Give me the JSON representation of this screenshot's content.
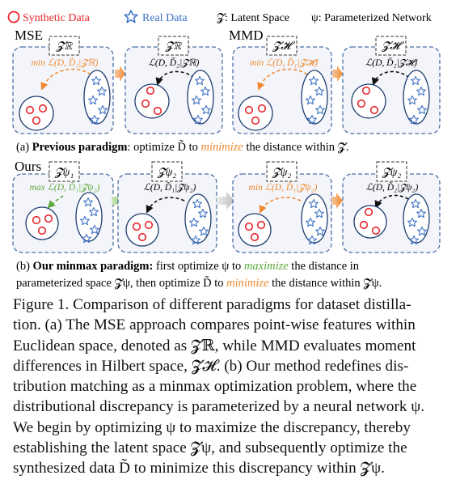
{
  "legend": {
    "synthetic_label": "Synthetic Data",
    "real_label": "Real Data",
    "latent_label": "𝓩: Latent Space",
    "param_label": "ψ: Parameterized Network"
  },
  "row1": {
    "label_mse": "MSE",
    "label_mmd": "MMD",
    "boxes": [
      "𝓩ℝ",
      "𝓩ℝ",
      "𝓩𝓗",
      "𝓩𝓗"
    ],
    "formulas": [
      "min ℒ(D, D̃₁|𝓩ℝ)",
      "ℒ(D, D̃₂|𝓩ℝ)",
      "min ℒ(D, D̃₁|𝓩𝓗)",
      "ℒ(D, D̃₂|𝓩𝓗)"
    ],
    "caption_prefix": "(a) ",
    "caption_bold": "Previous paradigm",
    "caption_mid": ": optimize D̃ to ",
    "caption_em": "minimize",
    "caption_end": " the distance within 𝓩."
  },
  "row2": {
    "label_ours": "Ours",
    "boxes": [
      "𝓩ψ₁",
      "𝓩ψ₂",
      "𝓩ψ₂",
      "𝓩ψ₂"
    ],
    "formulas": [
      "max ℒ(D, D̃₁|𝓩ψ₂)",
      "ℒ(D, D̃₁|𝓩ψ₂)",
      "min ℒ(D, D̃₁|𝓩ψ₂)",
      "ℒ(D, D̃₂|𝓩ψ₂)"
    ],
    "caption_l1_prefix": "(b) ",
    "caption_l1_bold": "Our minmax paradigm:",
    "caption_l1_mid": " first optimize ψ to ",
    "caption_l1_em": "maximize",
    "caption_l1_end": " the distance in",
    "caption_l2_start": "parameterized space 𝓩ψ,  then optimize D̃ to ",
    "caption_l2_em": "minimize",
    "caption_l2_end": " the distance within 𝓩ψ."
  },
  "caption": {
    "lines": [
      "Figure 1. Comparison of different paradigms for dataset distilla-",
      "tion. (a) The MSE approach compares point-wise features within",
      "Euclidean space, denoted as 𝓩ℝ, while MMD evaluates moment",
      "differences in Hilbert space, 𝓩𝓗. (b) Our method redefines dis-",
      "tribution matching as a minmax optimization problem, where the",
      "distributional discrepancy is parameterized by a neural network ψ.",
      "We begin by optimizing ψ to maximize the discrepancy, thereby",
      "establishing the latent space 𝓩ψ, and subsequently optimize the",
      "synthesized data D̃ to minimize this discrepancy within 𝓩ψ."
    ]
  },
  "colors": {
    "synthetic": "#e8262c",
    "real": "#3a6fc4",
    "orange": "#f08a30",
    "green": "#5eaa3a",
    "gray_arrow": "#c9c9c9",
    "panel_border": "#4a6fa5",
    "panel_fill": "#f3f5fa"
  }
}
